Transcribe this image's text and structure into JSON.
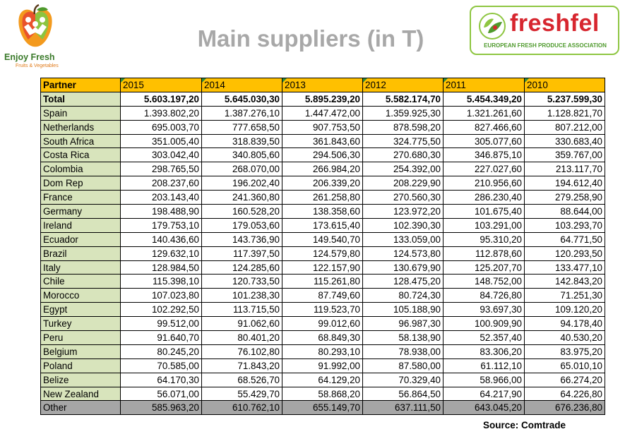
{
  "logos": {
    "enjoy_fresh": {
      "name": "Enjoy Fresh",
      "tagline": "Fruits & Vegetables"
    },
    "freshfel": {
      "name": "freshfel",
      "subtitle": "EUROPEAN FRESH PRODUCE ASSOCIATION"
    }
  },
  "title": "Main suppliers (in T)",
  "table": {
    "headers": [
      "Partner",
      "2015",
      "2014",
      "2013",
      "2012",
      "2011",
      "2010"
    ],
    "total": {
      "partner": "Total",
      "values": [
        "5.603.197,20",
        "5.645.030,30",
        "5.895.239,20",
        "5.582.174,70",
        "5.454.349,20",
        "5.237.599,30"
      ]
    },
    "rows": [
      {
        "partner": "Spain",
        "values": [
          "1.393.802,20",
          "1.387.276,10",
          "1.447.472,00",
          "1.359.925,30",
          "1.321.261,60",
          "1.128.821,70"
        ]
      },
      {
        "partner": "Netherlands",
        "values": [
          "695.003,70",
          "777.658,50",
          "907.753,50",
          "878.598,20",
          "827.466,60",
          "807.212,00"
        ]
      },
      {
        "partner": "South Africa",
        "values": [
          "351.005,40",
          "318.839,50",
          "361.843,60",
          "324.775,50",
          "305.077,60",
          "330.683,40"
        ]
      },
      {
        "partner": "Costa Rica",
        "values": [
          "303.042,40",
          "340.805,60",
          "294.506,30",
          "270.680,30",
          "346.875,10",
          "359.767,00"
        ]
      },
      {
        "partner": "Colombia",
        "values": [
          "298.765,50",
          "268.070,00",
          "266.984,20",
          "254.392,00",
          "227.027,60",
          "213.117,70"
        ]
      },
      {
        "partner": "Dom Rep",
        "values": [
          "208.237,60",
          "196.202,40",
          "206.339,20",
          "208.229,90",
          "210.956,60",
          "194.612,40"
        ]
      },
      {
        "partner": "France",
        "values": [
          "203.143,40",
          "241.360,80",
          "261.258,80",
          "270.560,30",
          "286.230,40",
          "279.258,90"
        ]
      },
      {
        "partner": "Germany",
        "values": [
          "198.488,90",
          "160.528,20",
          "138.358,60",
          "123.972,20",
          "101.675,40",
          "88.644,00"
        ]
      },
      {
        "partner": "Ireland",
        "values": [
          "179.753,10",
          "179.053,60",
          "173.615,40",
          "102.390,30",
          "103.291,00",
          "103.293,70"
        ]
      },
      {
        "partner": "Ecuador",
        "values": [
          "140.436,60",
          "143.736,90",
          "149.540,70",
          "133.059,00",
          "95.310,20",
          "64.771,50"
        ]
      },
      {
        "partner": "Brazil",
        "values": [
          "129.632,10",
          "117.397,50",
          "124.579,80",
          "124.573,80",
          "112.878,60",
          "120.293,50"
        ]
      },
      {
        "partner": "Italy",
        "values": [
          "128.984,50",
          "124.285,60",
          "122.157,90",
          "130.679,90",
          "125.207,70",
          "133.477,10"
        ]
      },
      {
        "partner": "Chile",
        "values": [
          "115.398,10",
          "120.733,50",
          "115.261,80",
          "128.475,20",
          "148.752,00",
          "142.843,20"
        ]
      },
      {
        "partner": "Morocco",
        "values": [
          "107.023,80",
          "101.238,30",
          "87.749,60",
          "80.724,30",
          "84.726,80",
          "71.251,30"
        ]
      },
      {
        "partner": "Egypt",
        "values": [
          "102.292,50",
          "113.715,50",
          "119.523,70",
          "105.188,90",
          "93.697,30",
          "109.120,20"
        ]
      },
      {
        "partner": "Turkey",
        "values": [
          "99.512,00",
          "91.062,60",
          "99.012,60",
          "96.987,30",
          "100.909,90",
          "94.178,40"
        ]
      },
      {
        "partner": "Peru",
        "values": [
          "91.640,70",
          "80.401,20",
          "68.849,30",
          "58.138,90",
          "52.357,40",
          "40.530,20"
        ]
      },
      {
        "partner": "Belgium",
        "values": [
          "80.245,20",
          "76.102,80",
          "80.293,10",
          "78.938,00",
          "83.306,20",
          "83.975,20"
        ]
      },
      {
        "partner": "Poland",
        "values": [
          "70.585,00",
          "71.843,20",
          "91.992,00",
          "87.580,00",
          "61.112,10",
          "65.010,10"
        ]
      },
      {
        "partner": "Belize",
        "values": [
          "64.170,30",
          "68.526,70",
          "64.129,20",
          "70.329,40",
          "58.966,00",
          "66.274,20"
        ]
      },
      {
        "partner": "New Zealand",
        "values": [
          "56.071,00",
          "55.429,70",
          "58.868,20",
          "56.864,50",
          "64.217,90",
          "64.226,80"
        ]
      }
    ],
    "other": {
      "partner": "Other",
      "values": [
        "585.963,20",
        "610.762,10",
        "655.149,70",
        "637.111,50",
        "643.045,20",
        "676.236,80"
      ]
    }
  },
  "source": "Source: Comtrade",
  "colors": {
    "header_bg": "#ffc000",
    "partner_bg": "#d8e4bc",
    "other_bg": "#a6a6a6",
    "title": "#a8a8a8",
    "freshfel_red": "#d7262f",
    "freshfel_green": "#4f9a2d"
  }
}
